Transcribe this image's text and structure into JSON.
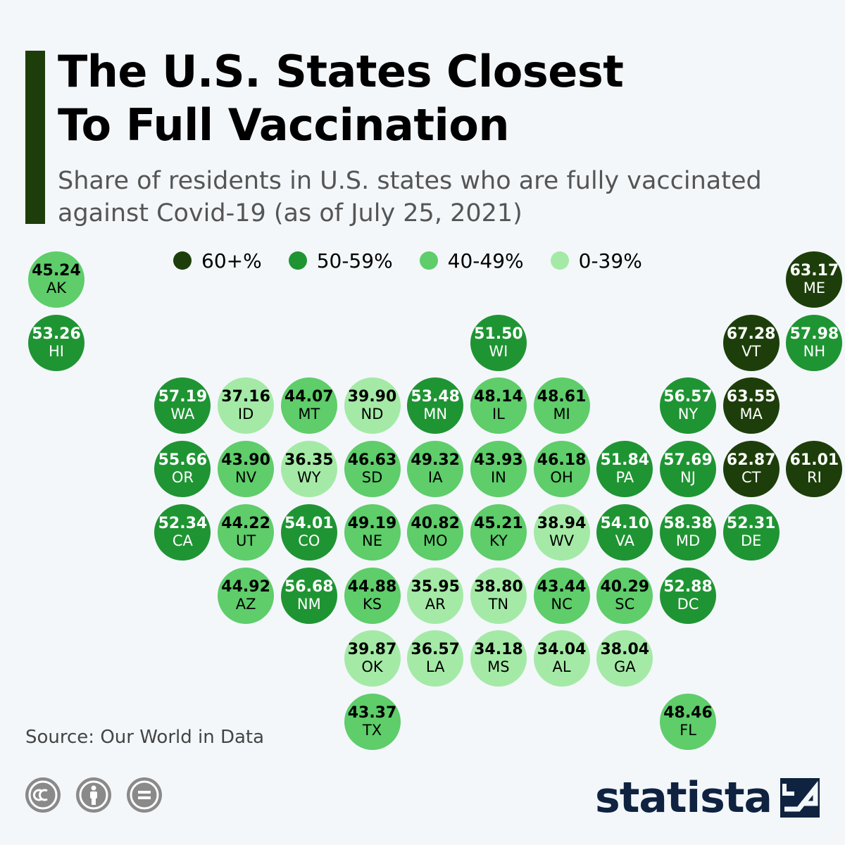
{
  "header": {
    "title_line1": "The U.S. States Closest",
    "title_line2": "To Full Vaccination",
    "subtitle_line1": "Share of residents in U.S. states who are fully vaccinated",
    "subtitle_line2": "against Covid-19 (as of July 25, 2021)",
    "accent_color": "#1d3e0a"
  },
  "legend": [
    {
      "label": "60+%",
      "color": "#1d3e0a"
    },
    {
      "label": "50-59%",
      "color": "#1f9433"
    },
    {
      "label": "40-49%",
      "color": "#5ecd6a"
    },
    {
      "label": "0-39%",
      "color": "#a4eaa6"
    }
  ],
  "chart_data": {
    "type": "tile-grid-map",
    "unit": "%",
    "bins": [
      {
        "label": "60+%",
        "min": 60,
        "color": "#1d3e0a",
        "text_color": "#ffffff"
      },
      {
        "label": "50-59%",
        "min": 50,
        "color": "#1f9433",
        "text_color": "#ffffff"
      },
      {
        "label": "40-49%",
        "min": 40,
        "color": "#5ecd6a",
        "text_color": "#000000"
      },
      {
        "label": "0-39%",
        "min": 0,
        "color": "#a4eaa6",
        "text_color": "#000000"
      }
    ],
    "states": [
      {
        "abbr": "AK",
        "value": "45.24",
        "col": 0,
        "row": 0
      },
      {
        "abbr": "ME",
        "value": "63.17",
        "col": 12,
        "row": 0
      },
      {
        "abbr": "HI",
        "value": "53.26",
        "col": 0,
        "row": 1
      },
      {
        "abbr": "WI",
        "value": "51.50",
        "col": 7,
        "row": 1
      },
      {
        "abbr": "VT",
        "value": "67.28",
        "col": 11,
        "row": 1
      },
      {
        "abbr": "NH",
        "value": "57.98",
        "col": 12,
        "row": 1
      },
      {
        "abbr": "WA",
        "value": "57.19",
        "col": 2,
        "row": 2
      },
      {
        "abbr": "ID",
        "value": "37.16",
        "col": 3,
        "row": 2
      },
      {
        "abbr": "MT",
        "value": "44.07",
        "col": 4,
        "row": 2
      },
      {
        "abbr": "ND",
        "value": "39.90",
        "col": 5,
        "row": 2
      },
      {
        "abbr": "MN",
        "value": "53.48",
        "col": 6,
        "row": 2
      },
      {
        "abbr": "IL",
        "value": "48.14",
        "col": 7,
        "row": 2
      },
      {
        "abbr": "MI",
        "value": "48.61",
        "col": 8,
        "row": 2
      },
      {
        "abbr": "NY",
        "value": "56.57",
        "col": 10,
        "row": 2
      },
      {
        "abbr": "MA",
        "value": "63.55",
        "col": 11,
        "row": 2
      },
      {
        "abbr": "OR",
        "value": "55.66",
        "col": 2,
        "row": 3
      },
      {
        "abbr": "NV",
        "value": "43.90",
        "col": 3,
        "row": 3
      },
      {
        "abbr": "WY",
        "value": "36.35",
        "col": 4,
        "row": 3
      },
      {
        "abbr": "SD",
        "value": "46.63",
        "col": 5,
        "row": 3
      },
      {
        "abbr": "IA",
        "value": "49.32",
        "col": 6,
        "row": 3
      },
      {
        "abbr": "IN",
        "value": "43.93",
        "col": 7,
        "row": 3
      },
      {
        "abbr": "OH",
        "value": "46.18",
        "col": 8,
        "row": 3
      },
      {
        "abbr": "PA",
        "value": "51.84",
        "col": 9,
        "row": 3
      },
      {
        "abbr": "NJ",
        "value": "57.69",
        "col": 10,
        "row": 3
      },
      {
        "abbr": "CT",
        "value": "62.87",
        "col": 11,
        "row": 3
      },
      {
        "abbr": "RI",
        "value": "61.01",
        "col": 12,
        "row": 3
      },
      {
        "abbr": "CA",
        "value": "52.34",
        "col": 2,
        "row": 4
      },
      {
        "abbr": "UT",
        "value": "44.22",
        "col": 3,
        "row": 4
      },
      {
        "abbr": "CO",
        "value": "54.01",
        "col": 4,
        "row": 4
      },
      {
        "abbr": "NE",
        "value": "49.19",
        "col": 5,
        "row": 4
      },
      {
        "abbr": "MO",
        "value": "40.82",
        "col": 6,
        "row": 4
      },
      {
        "abbr": "KY",
        "value": "45.21",
        "col": 7,
        "row": 4
      },
      {
        "abbr": "WV",
        "value": "38.94",
        "col": 8,
        "row": 4
      },
      {
        "abbr": "VA",
        "value": "54.10",
        "col": 9,
        "row": 4
      },
      {
        "abbr": "MD",
        "value": "58.38",
        "col": 10,
        "row": 4
      },
      {
        "abbr": "DE",
        "value": "52.31",
        "col": 11,
        "row": 4
      },
      {
        "abbr": "AZ",
        "value": "44.92",
        "col": 3,
        "row": 5
      },
      {
        "abbr": "NM",
        "value": "56.68",
        "col": 4,
        "row": 5
      },
      {
        "abbr": "KS",
        "value": "44.88",
        "col": 5,
        "row": 5
      },
      {
        "abbr": "AR",
        "value": "35.95",
        "col": 6,
        "row": 5
      },
      {
        "abbr": "TN",
        "value": "38.80",
        "col": 7,
        "row": 5
      },
      {
        "abbr": "NC",
        "value": "43.44",
        "col": 8,
        "row": 5
      },
      {
        "abbr": "SC",
        "value": "40.29",
        "col": 9,
        "row": 5
      },
      {
        "abbr": "DC",
        "value": "52.88",
        "col": 10,
        "row": 5
      },
      {
        "abbr": "OK",
        "value": "39.87",
        "col": 5,
        "row": 6
      },
      {
        "abbr": "LA",
        "value": "36.57",
        "col": 6,
        "row": 6
      },
      {
        "abbr": "MS",
        "value": "34.18",
        "col": 7,
        "row": 6
      },
      {
        "abbr": "AL",
        "value": "34.04",
        "col": 8,
        "row": 6
      },
      {
        "abbr": "GA",
        "value": "38.04",
        "col": 9,
        "row": 6
      },
      {
        "abbr": "TX",
        "value": "43.37",
        "col": 5,
        "row": 7
      },
      {
        "abbr": "FL",
        "value": "48.46",
        "col": 10,
        "row": 7
      }
    ]
  },
  "footer": {
    "source": "Source: Our World in Data",
    "license_icons": [
      "cc-icon",
      "attribution-icon",
      "no-derivatives-icon"
    ],
    "brand": "statista",
    "brand_color": "#0f2240"
  }
}
